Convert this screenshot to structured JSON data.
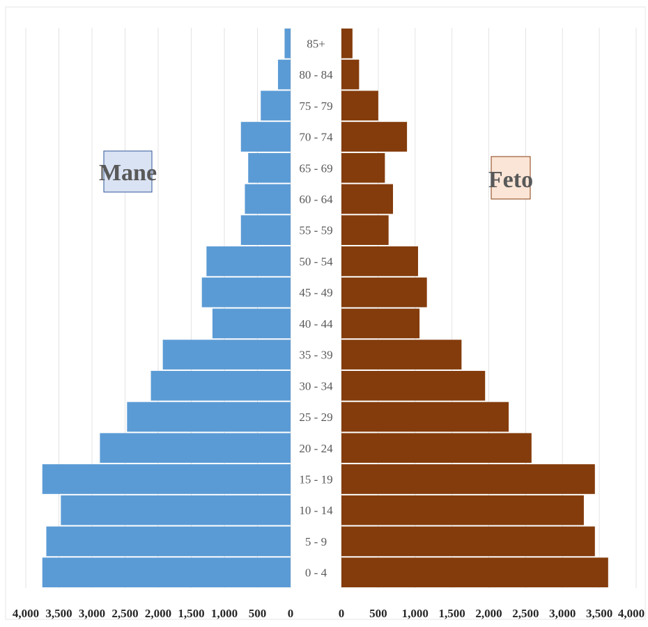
{
  "chart_data": {
    "type": "bar",
    "orientation": "horizontal",
    "layout": "population-pyramid",
    "categories": [
      "0 - 4",
      "5 - 9",
      "10 - 14",
      "15 - 19",
      "20 - 24",
      "25 - 29",
      "30 - 34",
      "35 - 39",
      "40 - 44",
      "45 - 49",
      "50 - 54",
      "55 - 59",
      "60 - 64",
      "65 - 69",
      "70 - 74",
      "75 - 79",
      "80 - 84",
      "85+"
    ],
    "series": [
      {
        "name": "Mane",
        "side": "left",
        "color": "#5b9bd5",
        "legend_bg": "#dae3f3",
        "values": [
          3750,
          3690,
          3470,
          3750,
          2880,
          2470,
          2110,
          1930,
          1180,
          1340,
          1270,
          750,
          690,
          640,
          750,
          450,
          190,
          90
        ]
      },
      {
        "name": "Feto",
        "side": "right",
        "color": "#843c0c",
        "legend_bg": "#fbe5d6",
        "values": [
          3620,
          3440,
          3290,
          3440,
          2580,
          2270,
          1950,
          1630,
          1060,
          1160,
          1040,
          640,
          700,
          590,
          890,
          500,
          240,
          150
        ]
      }
    ],
    "left_axis": {
      "ticks": [
        "4,000",
        "3,500",
        "3,000",
        "2,500",
        "2,000",
        "1,500",
        "1,000",
        "500",
        "0"
      ],
      "range": [
        0,
        4000
      ]
    },
    "right_axis": {
      "ticks": [
        "0",
        "500",
        "1,000",
        "1,500",
        "2,000",
        "2,500",
        "3,000",
        "3,500",
        "4,000"
      ],
      "range": [
        0,
        4000
      ]
    },
    "grid": true,
    "legend": [
      "Mane",
      "Feto"
    ],
    "legend_placement": "inside each side, upper-middle"
  }
}
